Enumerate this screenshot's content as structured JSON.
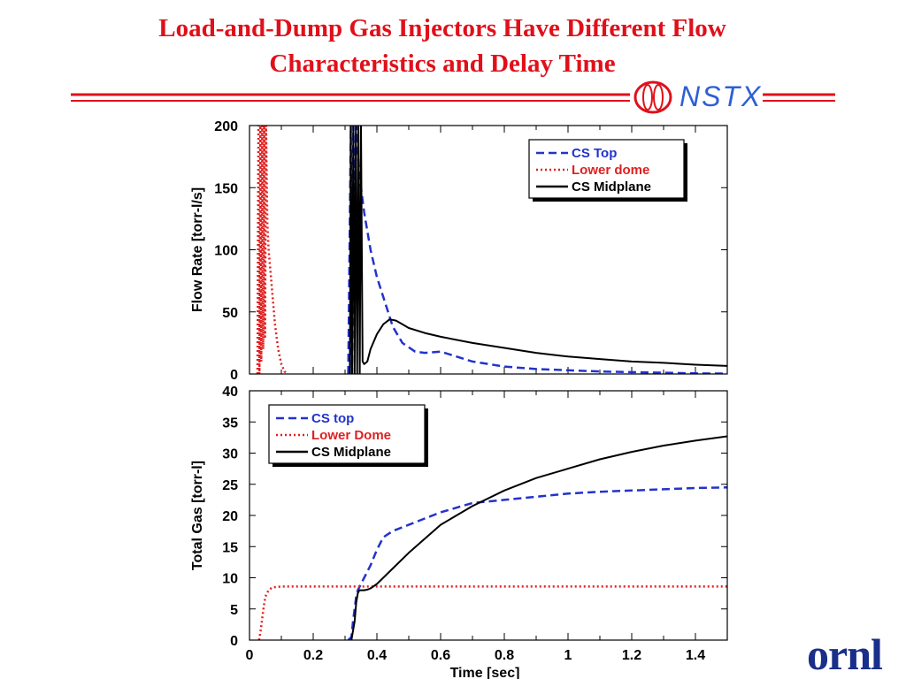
{
  "slide": {
    "title_line1": "Load-and-Dump Gas Injectors Have Different Flow",
    "title_line2": "Characteristics and Delay Time",
    "logo_text": "NSTX",
    "footer_logo": "ornl",
    "colors": {
      "title": "#e0101a",
      "rule": "#e0101a",
      "nstx": "#2d5fd6",
      "ornl": "#1a2f8a"
    }
  },
  "chart_data": [
    {
      "type": "line",
      "ylabel": "Flow Rate [torr-l/s]",
      "xlabel": "",
      "xlim": [
        0,
        1.5
      ],
      "ylim": [
        0,
        200
      ],
      "yticks": [
        "0",
        "50",
        "100",
        "150",
        "200"
      ],
      "grid": false,
      "legend_position": "top-right",
      "series": [
        {
          "name": "CS Top",
          "color": "#2233cc",
          "style": "dashed",
          "x": [
            0.31,
            0.318,
            0.322,
            0.326,
            0.33,
            0.335,
            0.345,
            0.36,
            0.38,
            0.4,
            0.42,
            0.45,
            0.48,
            0.52,
            0.55,
            0.6,
            0.65,
            0.7,
            0.8,
            0.9,
            1.0,
            1.1,
            1.2,
            1.3,
            1.4,
            1.5
          ],
          "y": [
            0,
            200,
            0,
            200,
            120,
            200,
            160,
            130,
            100,
            78,
            62,
            38,
            25,
            18,
            17,
            18,
            14,
            10,
            6,
            4,
            3,
            2,
            1.5,
            1,
            0.5,
            0.3
          ]
        },
        {
          "name": "Lower dome",
          "color": "#e02020",
          "style": "dotted",
          "x": [
            0.025,
            0.028,
            0.031,
            0.034,
            0.037,
            0.04,
            0.043,
            0.046,
            0.049,
            0.052,
            0.056,
            0.06,
            0.07,
            0.08,
            0.09,
            0.1,
            0.11,
            0.12
          ],
          "y": [
            0,
            200,
            0,
            200,
            10,
            200,
            20,
            200,
            30,
            200,
            120,
            100,
            70,
            40,
            20,
            8,
            2,
            0
          ]
        },
        {
          "name": "CS Midplane",
          "color": "#000000",
          "style": "solid",
          "x": [
            0.315,
            0.318,
            0.322,
            0.326,
            0.33,
            0.334,
            0.338,
            0.342,
            0.346,
            0.35,
            0.355,
            0.36,
            0.37,
            0.38,
            0.4,
            0.42,
            0.44,
            0.46,
            0.48,
            0.5,
            0.55,
            0.6,
            0.7,
            0.8,
            0.9,
            1.0,
            1.1,
            1.2,
            1.3,
            1.4,
            1.5
          ],
          "y": [
            0,
            200,
            0,
            200,
            0,
            200,
            0,
            200,
            0,
            200,
            10,
            8,
            10,
            20,
            32,
            40,
            44,
            43,
            40,
            37,
            33,
            30,
            25,
            21,
            17,
            14,
            12,
            10,
            9,
            7.5,
            6.5
          ]
        }
      ]
    },
    {
      "type": "line",
      "ylabel": "Total Gas [torr-l]",
      "xlabel": "Time [sec]",
      "xlim": [
        0,
        1.5
      ],
      "ylim": [
        0,
        40
      ],
      "xticks": [
        "0",
        "0.2",
        "0.4",
        "0.6",
        "0.8",
        "1",
        "1.2",
        "1.4"
      ],
      "yticks": [
        "0",
        "5",
        "10",
        "15",
        "20",
        "25",
        "30",
        "35",
        "40"
      ],
      "grid": false,
      "legend_position": "top-left",
      "series": [
        {
          "name": "CS top",
          "color": "#2233cc",
          "style": "dashed",
          "x": [
            0.31,
            0.32,
            0.325,
            0.33,
            0.335,
            0.34,
            0.35,
            0.36,
            0.38,
            0.4,
            0.42,
            0.45,
            0.5,
            0.55,
            0.6,
            0.7,
            0.8,
            0.9,
            1.0,
            1.1,
            1.2,
            1.3,
            1.4,
            1.5
          ],
          "y": [
            0,
            0.5,
            3,
            5,
            7,
            8,
            9,
            10,
            12,
            14.5,
            16.5,
            17.5,
            18.5,
            19.5,
            20.5,
            22,
            22.5,
            23,
            23.5,
            23.8,
            24,
            24.2,
            24.4,
            24.5
          ]
        },
        {
          "name": "Lower Dome",
          "color": "#e02020",
          "style": "dotted",
          "x": [
            0.03,
            0.035,
            0.04,
            0.045,
            0.05,
            0.06,
            0.07,
            0.08,
            0.1,
            0.2,
            0.4,
            0.6,
            0.8,
            1.0,
            1.2,
            1.4,
            1.5
          ],
          "y": [
            0,
            1.5,
            3.5,
            5.5,
            7,
            8,
            8.4,
            8.5,
            8.6,
            8.6,
            8.6,
            8.6,
            8.6,
            8.6,
            8.6,
            8.6,
            8.6
          ]
        },
        {
          "name": "CS Midplane",
          "color": "#000000",
          "style": "solid",
          "x": [
            0.32,
            0.33,
            0.335,
            0.34,
            0.345,
            0.35,
            0.36,
            0.37,
            0.38,
            0.4,
            0.45,
            0.5,
            0.6,
            0.7,
            0.8,
            0.9,
            1.0,
            1.1,
            1.2,
            1.3,
            1.4,
            1.5
          ],
          "y": [
            0,
            3,
            6,
            7.5,
            8,
            8,
            8,
            8.1,
            8.3,
            9,
            11.5,
            14,
            18.5,
            21.5,
            24,
            26,
            27.5,
            29,
            30.2,
            31.2,
            32,
            32.7
          ]
        }
      ]
    }
  ]
}
